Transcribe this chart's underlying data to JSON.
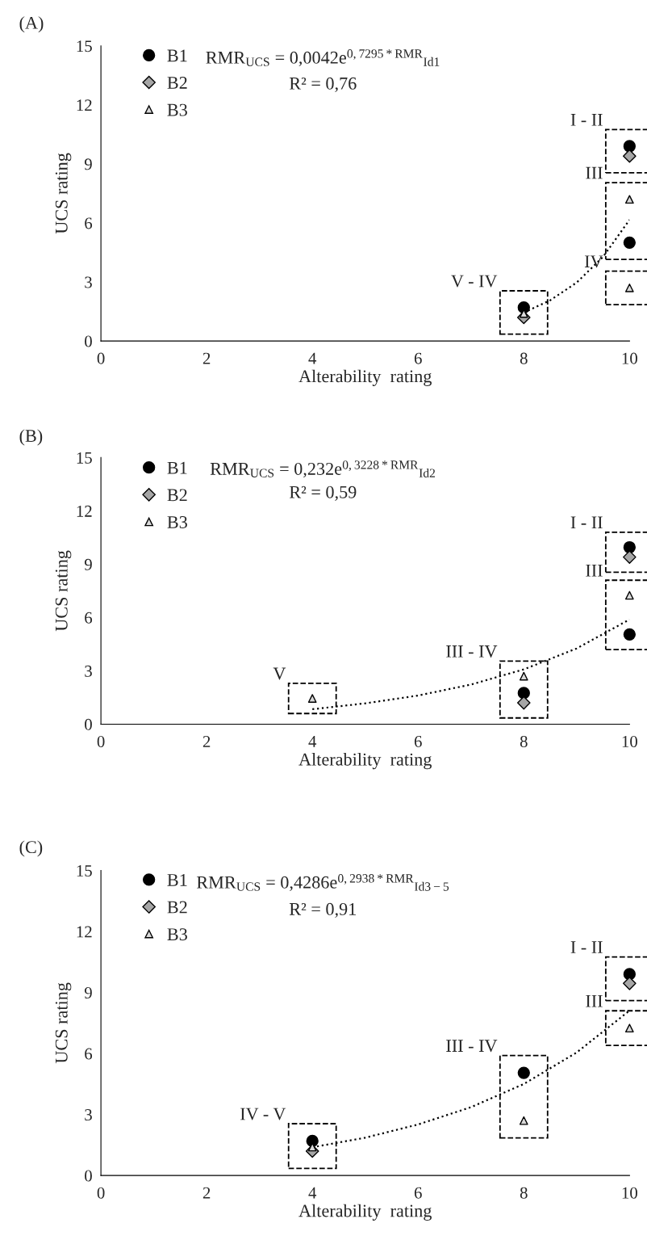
{
  "chart_data": [
    {
      "type": "scatter",
      "title": "(A)",
      "xlabel": "Alterability  rating",
      "ylabel": "UCS rating",
      "xlim": [
        0,
        10
      ],
      "xticks": [
        0,
        2,
        4,
        6,
        8,
        10
      ],
      "ylim": [
        0,
        15
      ],
      "yticks": [
        0,
        3,
        6,
        9,
        12,
        15
      ],
      "legend": "top left",
      "grid": false,
      "series": [
        {
          "name": "B1",
          "marker": "circle",
          "color": "#000000",
          "x": [
            8,
            10,
            10
          ],
          "values": [
            1.7,
            9.9,
            5.0
          ]
        },
        {
          "name": "B2",
          "marker": "diamond",
          "color": "#a6a6a6",
          "x": [
            8,
            10
          ],
          "values": [
            1.2,
            9.4
          ]
        },
        {
          "name": "B3",
          "marker": "triangle",
          "color": "#d9d9d9",
          "x": [
            8,
            10,
            10
          ],
          "values": [
            1.4,
            7.2,
            2.7
          ]
        },
        {
          "type": "line",
          "line_style": "dotted",
          "color": "#000000",
          "x": [
            8,
            8.5,
            9,
            9.5,
            10
          ],
          "values": [
            1.44,
            2.07,
            2.97,
            4.28,
            6.16
          ]
        }
      ],
      "annotations": [
        "RMR$_{UCS}$ = 0,0042e$^{0,7295*RMR}$$_{Id1}$",
        "R² = 0,76",
        {
          "text": "I - II",
          "x": 10,
          "y": 9.9
        },
        {
          "text": "III",
          "x": 10,
          "y": 7.2
        },
        {
          "text": "IV",
          "x": 10,
          "y": 2.7
        },
        {
          "text": "V - IV",
          "x": 8,
          "y": 1.7
        }
      ]
    },
    {
      "type": "scatter",
      "title": "(B)",
      "xlabel": "Alterability  rating",
      "ylabel": "UCS rating",
      "xlim": [
        0,
        10
      ],
      "xticks": [
        0,
        2,
        4,
        6,
        8,
        10
      ],
      "ylim": [
        0,
        15
      ],
      "yticks": [
        0,
        3,
        6,
        9,
        12,
        15
      ],
      "legend": "top left",
      "grid": false,
      "series": [
        {
          "name": "B1",
          "marker": "circle",
          "color": "#000000",
          "x": [
            8,
            10,
            10
          ],
          "values": [
            1.75,
            9.95,
            5.05
          ]
        },
        {
          "name": "B2",
          "marker": "diamond",
          "color": "#a6a6a6",
          "x": [
            8,
            10
          ],
          "values": [
            1.2,
            9.4
          ]
        },
        {
          "name": "B3",
          "marker": "triangle",
          "color": "#d9d9d9",
          "x": [
            4,
            8,
            10
          ],
          "values": [
            1.45,
            2.7,
            7.25
          ]
        },
        {
          "type": "line",
          "line_style": "dotted",
          "color": "#000000",
          "x": [
            4,
            5,
            6,
            7,
            8,
            9,
            10
          ],
          "values": [
            0.84,
            1.17,
            1.61,
            2.23,
            3.08,
            4.26,
            5.89
          ]
        }
      ],
      "annotations": [
        "RMR$_{UCS}$ = 0,232e$^{0,3228*RMR}$$_{Id2}$",
        "R² = 0,59",
        {
          "text": "I - II",
          "x": 10,
          "y": 9.95
        },
        {
          "text": "III",
          "x": 10,
          "y": 7.25
        },
        {
          "text": "III - IV",
          "x": 8,
          "y": 2.7
        },
        {
          "text": "V",
          "x": 4,
          "y": 1.45
        }
      ]
    },
    {
      "type": "scatter",
      "title": "(C)",
      "xlabel": "Alterability  rating",
      "ylabel": "UCS rating",
      "xlim": [
        0,
        10
      ],
      "xticks": [
        0,
        2,
        4,
        6,
        8,
        10
      ],
      "ylim": [
        0,
        15
      ],
      "yticks": [
        0,
        3,
        6,
        9,
        12,
        15
      ],
      "legend": "top left",
      "grid": false,
      "series": [
        {
          "name": "B1",
          "marker": "circle",
          "color": "#000000",
          "x": [
            4,
            8,
            10
          ],
          "values": [
            1.7,
            5.05,
            9.9
          ]
        },
        {
          "name": "B2",
          "marker": "diamond",
          "color": "#a6a6a6",
          "x": [
            4,
            10
          ],
          "values": [
            1.2,
            9.45
          ]
        },
        {
          "name": "B3",
          "marker": "triangle",
          "color": "#d9d9d9",
          "x": [
            4,
            8,
            10
          ],
          "values": [
            1.4,
            2.7,
            7.25
          ]
        },
        {
          "type": "line",
          "line_style": "dotted",
          "color": "#000000",
          "x": [
            4,
            5,
            6,
            7,
            8,
            9,
            10
          ],
          "values": [
            1.39,
            1.86,
            2.51,
            3.36,
            4.5,
            6.05,
            8.11
          ]
        }
      ],
      "annotations": [
        "RMR$_{UCS}$ = 0,4286e$^{0,2938*RMR}$$_{Id3−5}$",
        "R² = 0,91",
        {
          "text": "I - II",
          "x": 10,
          "y": 9.9
        },
        {
          "text": "III",
          "x": 10,
          "y": 7.25
        },
        {
          "text": "III - IV",
          "x": 8,
          "y": 5.05
        },
        {
          "text": "IV - V",
          "x": 4,
          "y": 1.7
        }
      ]
    }
  ]
}
